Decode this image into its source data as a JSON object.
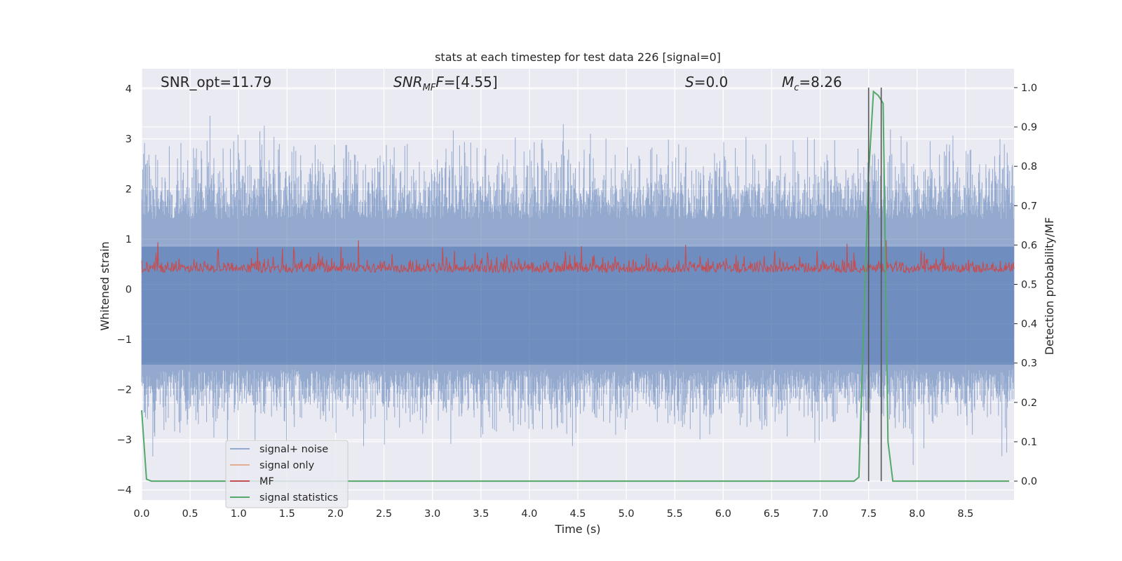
{
  "chart_data": {
    "type": "line",
    "title": "stats at each timestep for test data 226 [signal=0]",
    "xlabel": "Time (s)",
    "ylabel_left": "Whitened strain",
    "ylabel_right": "Detection probability/MF",
    "xlim": [
      0.0,
      9.0
    ],
    "ylim_left": [
      -4.2,
      4.4
    ],
    "ylim_right": [
      -0.048,
      1.048
    ],
    "x_ticks": [
      "0.0",
      "0.5",
      "1.0",
      "1.5",
      "2.0",
      "2.5",
      "3.0",
      "3.5",
      "4.0",
      "4.5",
      "5.0",
      "5.5",
      "6.0",
      "6.5",
      "7.0",
      "7.5",
      "8.0",
      "8.5"
    ],
    "y_ticks_left": [
      "−4",
      "−3",
      "−2",
      "−1",
      "0",
      "1",
      "2",
      "3",
      "4"
    ],
    "y_ticks_right": [
      "0.0",
      "0.1",
      "0.2",
      "0.3",
      "0.4",
      "0.5",
      "0.6",
      "0.7",
      "0.8",
      "0.9",
      "1.0"
    ],
    "grid": true,
    "background": "#eaeaf2",
    "legend_placement": "lower-left",
    "annotations": {
      "snr_opt": "SNR_opt=11.79",
      "snr_mf_base": "SNR",
      "snr_mf_sub": "MF",
      "snr_mf_value": "F=[4.55]",
      "s_var": "S",
      "s_value": "=0.0",
      "mc_var": "M",
      "mc_sub": "c",
      "mc_value": "=8.26"
    },
    "series": [
      {
        "name": "signal+ noise",
        "axis": "left",
        "color": "#4c72b0",
        "style": "noise band, approx. between -2.6 and +2.6 with spikes to about ±4"
      },
      {
        "name": "signal only",
        "axis": "left",
        "color": "#dd8452",
        "values": []
      },
      {
        "name": "MF",
        "axis": "right",
        "color": "#c44e52",
        "style": "fluctuating between about 0.50 and 0.61"
      },
      {
        "name": "signal statistics",
        "axis": "right",
        "color": "#55a868",
        "x": [
          0.0,
          0.05,
          0.1,
          0.15,
          0.5,
          1.0,
          2.0,
          3.0,
          4.0,
          5.0,
          6.0,
          7.0,
          7.35,
          7.4,
          7.45,
          7.5,
          7.55,
          7.6,
          7.65,
          7.7,
          7.75,
          7.8,
          8.0,
          8.5,
          8.95
        ],
        "y": [
          0.18,
          0.005,
          0.0,
          0.0,
          0.0,
          0.0,
          0.0,
          0.0,
          0.0,
          0.0,
          0.0,
          0.0,
          0.0,
          0.01,
          0.4,
          0.78,
          0.99,
          0.98,
          0.96,
          0.1,
          0.0,
          0.0,
          0.0,
          0.0,
          0.0
        ]
      }
    ],
    "vertical_markers": {
      "color": "#555555",
      "x": [
        7.5,
        7.63
      ],
      "y_range": [
        0.0,
        1.0
      ]
    }
  }
}
